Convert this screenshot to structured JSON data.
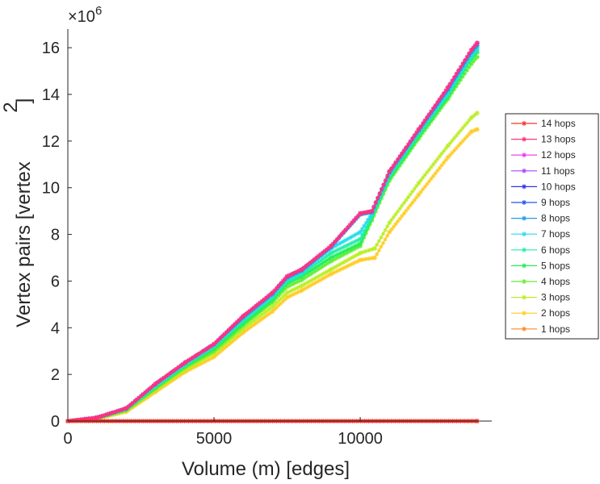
{
  "chart_data": {
    "type": "line",
    "xlabel": "Volume (m) [edges]",
    "ylabel": "Vertex pairs [vertex",
    "ylabel_superscript": "2",
    "ylabel_close": "]",
    "y_multiplier_base": "×10",
    "y_multiplier_exponent": "6",
    "xlim": [
      0,
      14500
    ],
    "ylim": [
      0,
      16.8
    ],
    "x_ticks": [
      0,
      5000,
      10000
    ],
    "x_tick_labels": [
      "0",
      "5000",
      "10000"
    ],
    "y_ticks": [
      0,
      2,
      4,
      6,
      8,
      10,
      12,
      14,
      16
    ],
    "y_tick_labels": [
      "0",
      "2",
      "4",
      "6",
      "8",
      "10",
      "12",
      "14",
      "16"
    ],
    "grid": false,
    "legend_position": "right",
    "marker": "asterisk",
    "series": [
      {
        "name": "14 hops",
        "color": "#ff3030",
        "x": [
          0,
          14000
        ],
        "y": [
          0.0,
          0.0
        ]
      },
      {
        "name": "13 hops",
        "color": "#ff3377",
        "x": [
          0,
          1000,
          2000,
          3000,
          4000,
          5000,
          6000,
          7000,
          7500,
          8000,
          9000,
          10000,
          10400,
          11000,
          12000,
          13000,
          13800,
          14000
        ],
        "y": [
          0.0,
          0.15,
          0.55,
          1.6,
          2.5,
          3.3,
          4.5,
          5.5,
          6.2,
          6.5,
          7.5,
          8.9,
          9.0,
          10.7,
          12.5,
          14.3,
          15.9,
          16.2
        ]
      },
      {
        "name": "12 hops",
        "color": "#ee33ee",
        "x": [
          0,
          1000,
          2000,
          3000,
          4000,
          5000,
          6000,
          7000,
          7500,
          8000,
          9000,
          10000,
          10400,
          11000,
          12000,
          13000,
          13800,
          14000
        ],
        "y": [
          0.0,
          0.15,
          0.55,
          1.6,
          2.5,
          3.3,
          4.5,
          5.5,
          6.2,
          6.5,
          7.5,
          8.9,
          9.0,
          10.7,
          12.5,
          14.3,
          15.9,
          16.2
        ]
      },
      {
        "name": "11 hops",
        "color": "#aa44ff",
        "x": [
          0,
          1000,
          2000,
          3000,
          4000,
          5000,
          6000,
          7000,
          7500,
          8000,
          9000,
          10000,
          10400,
          11000,
          12000,
          13000,
          13800,
          14000
        ],
        "y": [
          0.0,
          0.15,
          0.55,
          1.6,
          2.5,
          3.3,
          4.5,
          5.5,
          6.2,
          6.5,
          7.5,
          8.9,
          9.0,
          10.7,
          12.5,
          14.3,
          15.9,
          16.2
        ]
      },
      {
        "name": "10 hops",
        "color": "#3333ee",
        "x": [
          0,
          1000,
          2000,
          3000,
          4000,
          5000,
          6000,
          7000,
          7500,
          8000,
          9000,
          10000,
          10400,
          11000,
          12000,
          13000,
          13800,
          14000
        ],
        "y": [
          0.0,
          0.15,
          0.55,
          1.6,
          2.5,
          3.3,
          4.5,
          5.5,
          6.2,
          6.5,
          7.5,
          8.9,
          9.0,
          10.7,
          12.5,
          14.3,
          15.9,
          16.2
        ]
      },
      {
        "name": "9 hops",
        "color": "#2255ee",
        "x": [
          0,
          1000,
          2000,
          3000,
          4000,
          5000,
          6000,
          7000,
          7500,
          8000,
          9000,
          10000,
          10400,
          11000,
          12000,
          13000,
          13800,
          14000
        ],
        "y": [
          0.0,
          0.15,
          0.55,
          1.6,
          2.5,
          3.3,
          4.5,
          5.5,
          6.2,
          6.5,
          7.5,
          8.9,
          9.0,
          10.7,
          12.5,
          14.3,
          15.9,
          16.2
        ]
      },
      {
        "name": "8 hops",
        "color": "#2299ee",
        "x": [
          0,
          1000,
          2000,
          3000,
          4000,
          5000,
          6000,
          7000,
          7500,
          8000,
          9000,
          10000,
          10400,
          11000,
          12000,
          13000,
          13800,
          14000
        ],
        "y": [
          0.0,
          0.15,
          0.55,
          1.6,
          2.5,
          3.3,
          4.45,
          5.45,
          6.15,
          6.45,
          7.45,
          8.85,
          8.95,
          10.65,
          12.45,
          14.2,
          15.8,
          16.1
        ]
      },
      {
        "name": "7 hops",
        "color": "#22ddee",
        "x": [
          0,
          1000,
          2000,
          3000,
          4000,
          5000,
          6000,
          7000,
          7500,
          8000,
          9000,
          10000,
          10400,
          11000,
          12000,
          13000,
          13800,
          14000
        ],
        "y": [
          0.0,
          0.15,
          0.55,
          1.55,
          2.45,
          3.25,
          4.4,
          5.4,
          6.1,
          6.4,
          7.4,
          8.1,
          8.9,
          10.6,
          12.4,
          14.1,
          15.7,
          16.0
        ]
      },
      {
        "name": "6 hops",
        "color": "#22eeaa",
        "x": [
          0,
          1000,
          2000,
          3000,
          4000,
          5000,
          6000,
          7000,
          7500,
          8000,
          9000,
          10000,
          10400,
          11000,
          12000,
          13000,
          13800,
          14000
        ],
        "y": [
          0.0,
          0.14,
          0.52,
          1.5,
          2.4,
          3.2,
          4.3,
          5.3,
          6.0,
          6.3,
          7.2,
          7.8,
          8.8,
          10.5,
          12.3,
          14.0,
          15.6,
          15.9
        ]
      },
      {
        "name": "5 hops",
        "color": "#22ee55",
        "x": [
          0,
          1000,
          2000,
          3000,
          4000,
          5000,
          6000,
          7000,
          7500,
          8000,
          9000,
          10000,
          10400,
          11000,
          12000,
          13000,
          13800,
          14000
        ],
        "y": [
          0.0,
          0.13,
          0.5,
          1.45,
          2.35,
          3.1,
          4.2,
          5.2,
          5.9,
          6.2,
          7.0,
          7.6,
          8.7,
          10.4,
          12.2,
          13.9,
          15.5,
          15.8
        ]
      },
      {
        "name": "4 hops",
        "color": "#66ee33",
        "x": [
          0,
          1000,
          2000,
          3000,
          4000,
          5000,
          6000,
          7000,
          7500,
          8000,
          9000,
          10000,
          10400,
          11000,
          12000,
          13000,
          13800,
          14000
        ],
        "y": [
          0.0,
          0.12,
          0.48,
          1.4,
          2.3,
          3.0,
          4.1,
          5.1,
          5.75,
          6.05,
          6.85,
          7.5,
          8.6,
          10.3,
          12.1,
          13.8,
          15.3,
          15.6
        ]
      },
      {
        "name": "3 hops",
        "color": "#bbee22",
        "x": [
          0,
          1000,
          2000,
          3000,
          4000,
          5000,
          6000,
          7000,
          7500,
          8000,
          9000,
          10000,
          10500,
          11000,
          12000,
          13000,
          13800,
          14000
        ],
        "y": [
          0.0,
          0.12,
          0.45,
          1.35,
          2.2,
          2.9,
          3.95,
          4.9,
          5.5,
          5.8,
          6.5,
          7.2,
          7.4,
          8.5,
          10.2,
          11.8,
          13.0,
          13.2
        ]
      },
      {
        "name": "2 hops",
        "color": "#ffcc22",
        "x": [
          0,
          1000,
          2000,
          3000,
          4000,
          5000,
          6000,
          7000,
          7500,
          8000,
          9000,
          10000,
          10500,
          11000,
          12000,
          13000,
          13800,
          14000
        ],
        "y": [
          0.0,
          0.1,
          0.4,
          1.25,
          2.1,
          2.75,
          3.8,
          4.7,
          5.3,
          5.6,
          6.3,
          6.9,
          7.0,
          8.1,
          9.7,
          11.3,
          12.4,
          12.5
        ]
      },
      {
        "name": "1 hops",
        "color": "#ff8822",
        "x": [
          0,
          14000
        ],
        "y": [
          0.0,
          0.0
        ]
      }
    ]
  }
}
